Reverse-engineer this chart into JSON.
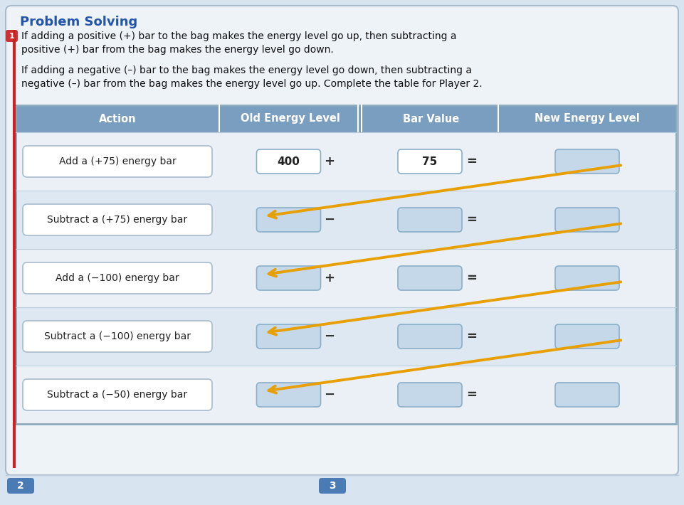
{
  "title": "Problem Solving",
  "title_color": "#2255AA",
  "bg_color": "#D8E4EF",
  "card_bg": "#EEF3F8",
  "header_bg": "#7A9EC0",
  "red_line_color": "#CC2222",
  "paragraph1_line1": "If adding a positive (+) bar to the bag makes the energy level go up, then subtracting a",
  "paragraph1_line2": "positive (+) bar from the bag makes the energy level go down.",
  "paragraph2_line1": "If adding a negative (–) bar to the bag makes the energy level go down, then subtracting a",
  "paragraph2_line2": "negative (–) bar from the bag makes the energy level go up. Complete the table for Player 2.",
  "col_headers": [
    "Action",
    "Old Energy Level",
    "Bar Value",
    "New Energy Level"
  ],
  "rows": [
    {
      "action": "Add a (+75) energy bar",
      "op": "+",
      "old_val": "400",
      "bar_val": "75"
    },
    {
      "action": "Subtract a (+75) energy bar",
      "op": "−",
      "old_val": "",
      "bar_val": ""
    },
    {
      "action": "Add a (−100) energy bar",
      "op": "+",
      "old_val": "",
      "bar_val": ""
    },
    {
      "action": "Subtract a (−100) energy bar",
      "op": "−",
      "old_val": "",
      "bar_val": ""
    },
    {
      "action": "Subtract a (−50) energy bar",
      "op": "−",
      "old_val": "",
      "bar_val": ""
    }
  ],
  "arrow_color": "#E8A000",
  "box_fill_light": "#C5D8EA",
  "box_fill_white": "#FFFFFF",
  "box_border": "#8BAFC8",
  "action_box_border": "#AABBCC",
  "tab_bg": "#4A7BB5",
  "num1_bg": "#CC3333",
  "row_bg_even": "#EAF0F6",
  "row_bg_odd": "#DDE8F2"
}
